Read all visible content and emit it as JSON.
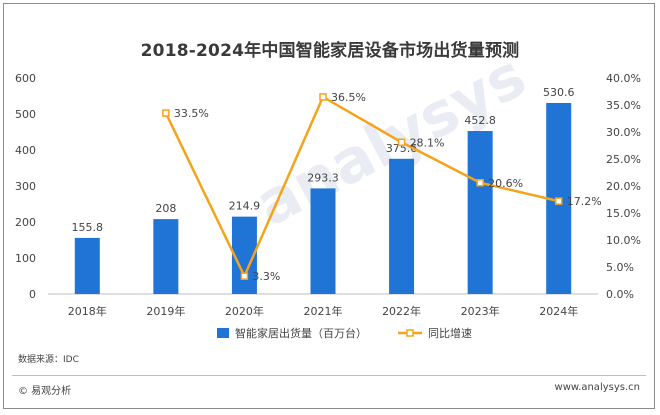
{
  "chart_data": {
    "type": "bar",
    "title": "2018-2024年中国智能家居设备市场出货量预测",
    "categories": [
      "2018年",
      "2019年",
      "2020年",
      "2021年",
      "2022年",
      "2023年",
      "2024年"
    ],
    "series": [
      {
        "name": "智能家居出货量（百万台）",
        "type": "bar",
        "axis": "left",
        "color": "#1f74d6",
        "values": [
          155.8,
          208,
          214.9,
          293.3,
          375.6,
          452.8,
          530.6
        ],
        "labels": [
          "155.8",
          "208",
          "214.9",
          "293.3",
          "375.6",
          "452.8",
          "530.6"
        ]
      },
      {
        "name": "同比增速",
        "type": "line",
        "axis": "right",
        "color": "#f5a31a",
        "values": [
          null,
          33.5,
          3.3,
          36.5,
          28.1,
          20.6,
          17.2
        ],
        "labels": [
          "",
          "33.5%",
          "3.3%",
          "36.5%",
          "28.1%",
          "20.6%",
          "17.2%"
        ]
      }
    ],
    "y_left": {
      "min": 0,
      "max": 600,
      "ticks": [
        "0",
        "100",
        "200",
        "300",
        "400",
        "500",
        "600"
      ]
    },
    "y_right": {
      "min": 0,
      "max": 40,
      "ticks": [
        "0.0%",
        "5.0%",
        "10.0%",
        "15.0%",
        "20.0%",
        "25.0%",
        "30.0%",
        "35.0%",
        "40.0%"
      ]
    },
    "legend_position": "bottom",
    "grid": false
  },
  "source_note": "数据来源：IDC",
  "brand": "© 易观分析",
  "website": "www.analysys.cn"
}
